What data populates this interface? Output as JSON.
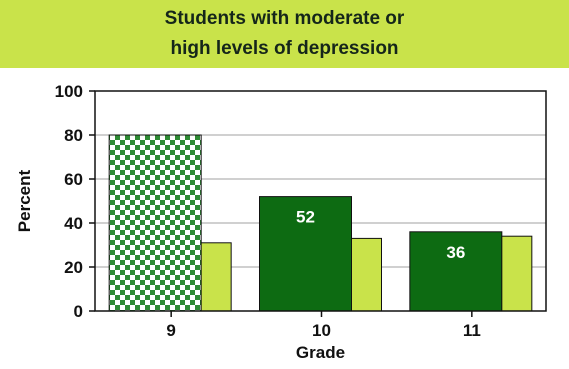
{
  "chart_data": {
    "type": "bar",
    "title_lines": [
      "Students with moderate or",
      "high levels of depression"
    ],
    "xlabel": "Grade",
    "ylabel": "Percent",
    "ylim": [
      0,
      100
    ],
    "yticks": [
      0,
      20,
      40,
      60,
      80,
      100
    ],
    "grid": true,
    "categories": [
      "9",
      "10",
      "11"
    ],
    "series": [
      {
        "values": [
          80,
          52,
          36
        ],
        "data_labels": [
          "",
          "52",
          "36"
        ],
        "colors": [
          "checkered",
          "#0d6b12",
          "#0d6b12"
        ]
      },
      {
        "values": [
          31,
          33,
          34
        ],
        "data_labels": [
          "",
          "",
          ""
        ],
        "colors": [
          "#c9e34a",
          "#c9e34a",
          "#c9e34a"
        ]
      }
    ]
  }
}
